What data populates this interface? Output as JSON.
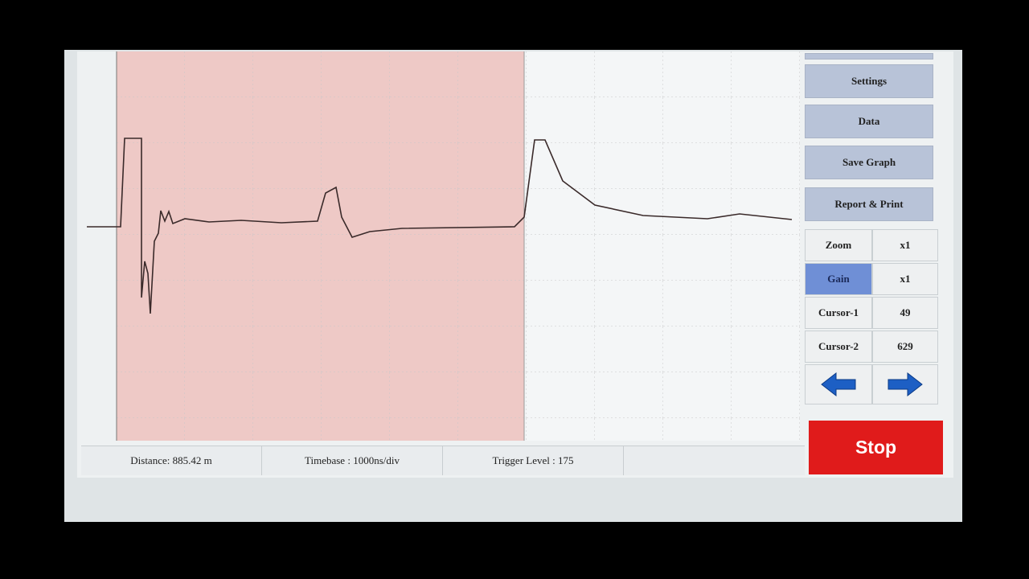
{
  "menu": {
    "buttons": [
      "Settings",
      "Data",
      "Save Graph",
      "Report & Print"
    ]
  },
  "controls": {
    "rows": [
      [
        "Zoom",
        "x1"
      ],
      [
        "Gain",
        "x1"
      ],
      [
        "Cursor-1",
        "49"
      ],
      [
        "Cursor-2",
        "629"
      ]
    ]
  },
  "stop_button": "Stop",
  "status_bar": {
    "distance": "Distance: 885.42 m",
    "timebase": "Timebase : 1000ns/div",
    "trigger_level": "Trigger Level : 175"
  }
}
